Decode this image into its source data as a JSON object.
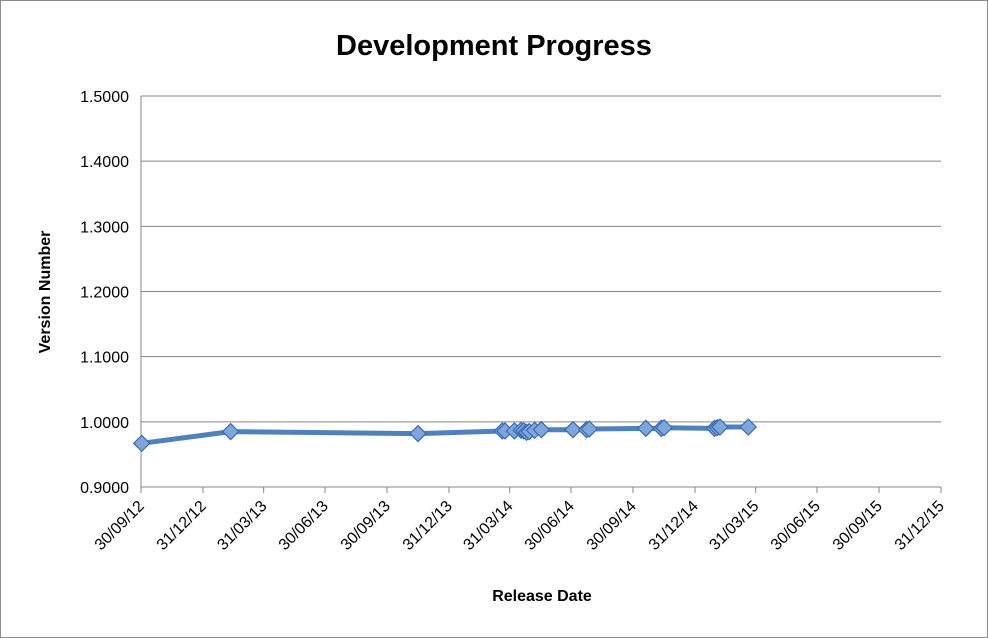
{
  "chart_data": {
    "type": "line",
    "title": "Development Progress",
    "xlabel": "Release Date",
    "ylabel": "Version Number",
    "xlim": [
      "2012-09-30",
      "2015-12-31"
    ],
    "ylim": [
      0.9,
      1.5
    ],
    "y_ticks": [
      "0.9000",
      "1.0000",
      "1.1000",
      "1.2000",
      "1.3000",
      "1.4000",
      "1.5000"
    ],
    "x_ticks": [
      "30/09/12",
      "31/12/12",
      "31/03/13",
      "30/06/13",
      "30/09/13",
      "31/12/13",
      "31/03/14",
      "30/06/14",
      "30/09/14",
      "31/12/14",
      "31/03/15",
      "30/06/15",
      "30/09/15",
      "31/12/15"
    ],
    "x_tick_dates": [
      "2012-09-30",
      "2012-12-31",
      "2013-03-31",
      "2013-06-30",
      "2013-09-30",
      "2013-12-31",
      "2014-03-31",
      "2014-06-30",
      "2014-09-30",
      "2014-12-31",
      "2015-03-31",
      "2015-06-30",
      "2015-09-30",
      "2015-12-31"
    ],
    "grid": true,
    "legend": "none",
    "series": [
      {
        "color": "#4f81bd",
        "points": [
          {
            "x": "2012-10-01",
            "y": 0.967
          },
          {
            "x": "2013-02-10",
            "y": 0.985
          },
          {
            "x": "2013-11-15",
            "y": 0.982
          },
          {
            "x": "2014-03-20",
            "y": 0.986
          },
          {
            "x": "2014-03-24",
            "y": 0.986
          },
          {
            "x": "2014-04-07",
            "y": 0.986
          },
          {
            "x": "2014-04-17",
            "y": 0.987
          },
          {
            "x": "2014-04-21",
            "y": 0.986
          },
          {
            "x": "2014-04-25",
            "y": 0.984
          },
          {
            "x": "2014-04-29",
            "y": 0.985
          },
          {
            "x": "2014-05-07",
            "y": 0.987
          },
          {
            "x": "2014-05-17",
            "y": 0.988
          },
          {
            "x": "2014-07-03",
            "y": 0.988
          },
          {
            "x": "2014-07-23",
            "y": 0.988
          },
          {
            "x": "2014-07-27",
            "y": 0.989
          },
          {
            "x": "2014-10-19",
            "y": 0.99
          },
          {
            "x": "2014-11-11",
            "y": 0.99
          },
          {
            "x": "2014-11-15",
            "y": 0.991
          },
          {
            "x": "2015-01-29",
            "y": 0.99
          },
          {
            "x": "2015-02-02",
            "y": 0.991
          },
          {
            "x": "2015-02-06",
            "y": 0.992
          },
          {
            "x": "2015-03-20",
            "y": 0.992
          }
        ]
      }
    ]
  }
}
